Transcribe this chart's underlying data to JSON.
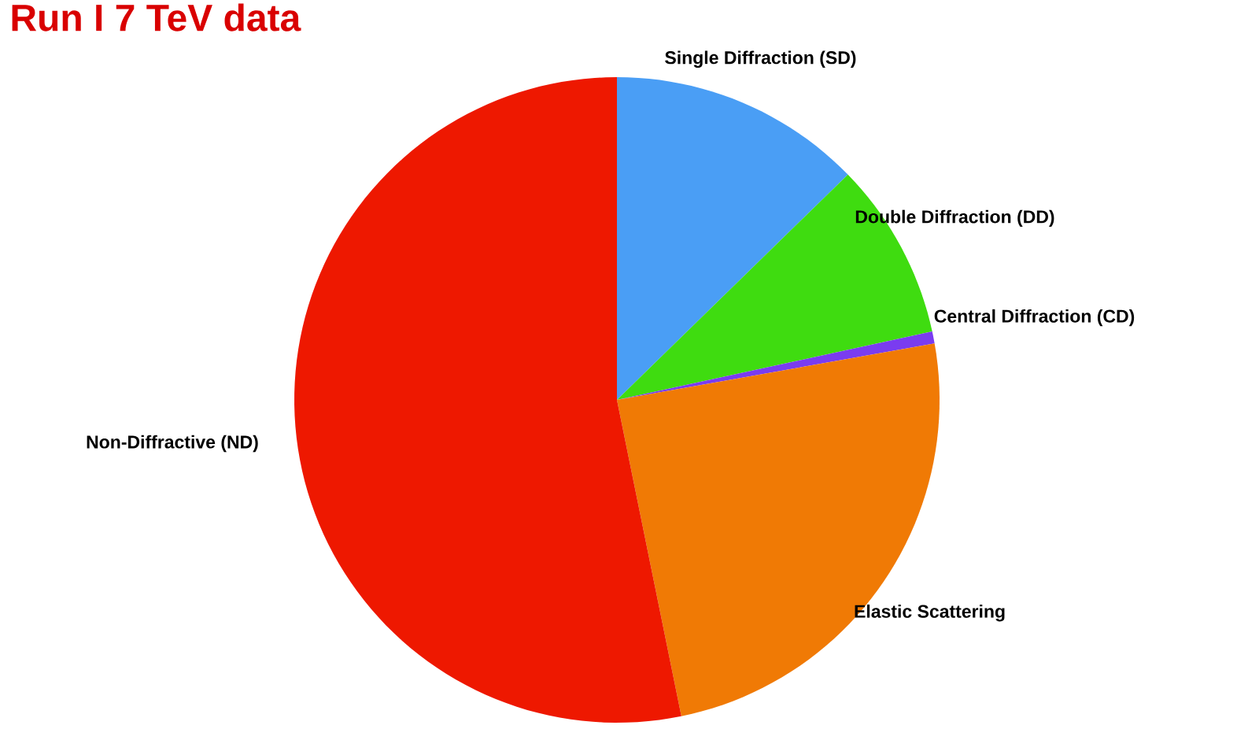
{
  "chart_data": {
    "type": "pie",
    "title": "Run I 7 TeV data",
    "categories": [
      "Single Diffraction (SD)",
      "Double Diffraction (DD)",
      "Central Diffraction (CD)",
      "Elastic Scattering",
      "Non-Diffractive (ND)"
    ],
    "values": [
      12.7,
      8.9,
      0.6,
      24.6,
      53.2
    ],
    "colors": [
      "#4a9ef5",
      "#3fdc10",
      "#7a3cf0",
      "#f07a05",
      "#ee1800"
    ]
  }
}
